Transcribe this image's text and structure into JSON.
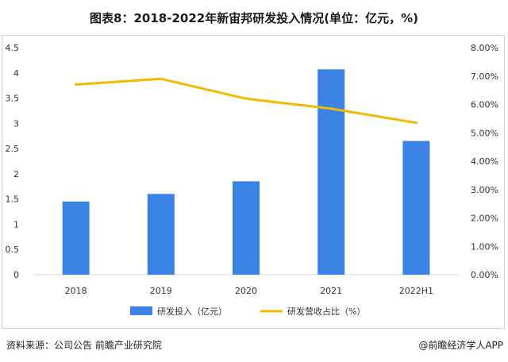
{
  "page": {
    "title": "图表8：2018-2022年新宙邦研发投入情况(单位：亿元，%)",
    "source": "资料来源：公司公告 前瞻产业研究院",
    "credit": "@前瞻经济学人APP"
  },
  "colors": {
    "bar": "#3a82e4",
    "line": "#f5b800",
    "axis": "#d9d9d9",
    "text": "#333333"
  },
  "chart_data": {
    "type": "bar+line",
    "categories": [
      "2018",
      "2019",
      "2020",
      "2021",
      "2022H1"
    ],
    "series": [
      {
        "name": "研发投入（亿元）",
        "type": "bar",
        "axis": "left",
        "values": [
          1.45,
          1.6,
          1.85,
          4.07,
          2.65
        ]
      },
      {
        "name": "研发营收占比（%）",
        "type": "line",
        "axis": "right",
        "values": [
          6.7,
          6.9,
          6.2,
          5.85,
          5.35
        ]
      }
    ],
    "y_left": {
      "min": 0,
      "max": 4.5,
      "ticks": [
        "0",
        "0.5",
        "1",
        "1.5",
        "2",
        "2.5",
        "3",
        "3.5",
        "4",
        "4.5"
      ]
    },
    "y_right": {
      "min": 0,
      "max": 8,
      "ticks": [
        "0.00%",
        "1.00%",
        "2.00%",
        "3.00%",
        "4.00%",
        "5.00%",
        "6.00%",
        "7.00%",
        "8.00%"
      ]
    },
    "legend_position": "bottom-center",
    "grid": false
  }
}
